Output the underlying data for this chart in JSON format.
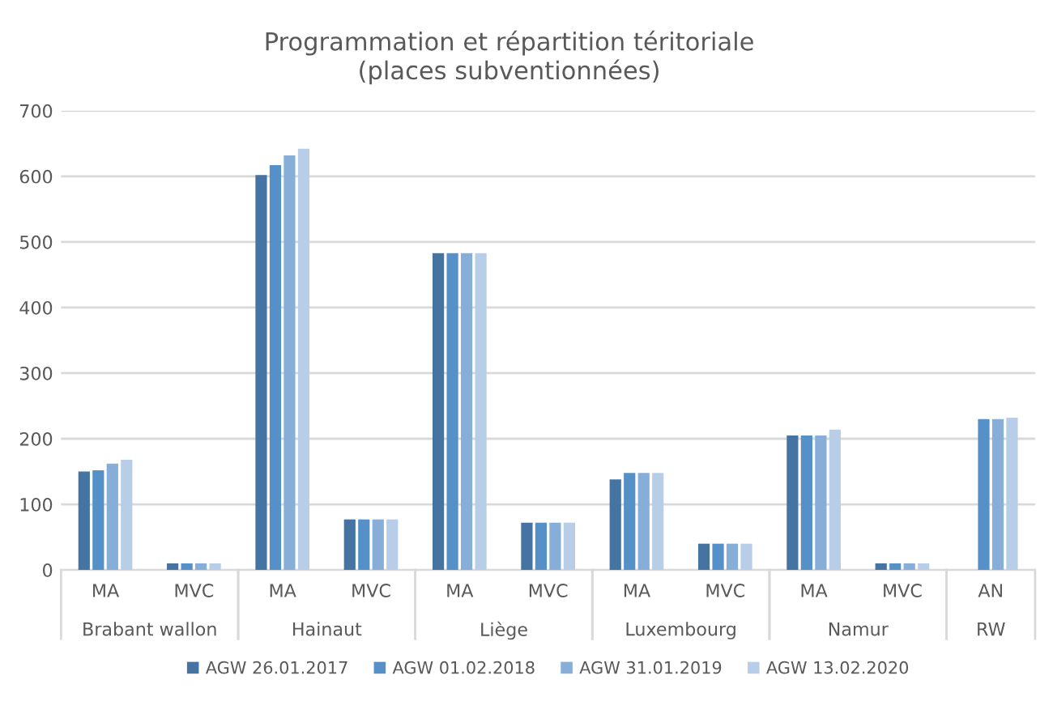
{
  "chart_data": {
    "type": "bar",
    "title": "Programmation et répartition téritoriale\n(places subventionnées)",
    "categories": [
      "MA",
      "MVC",
      "MA",
      "MVC",
      "MA",
      "MVC",
      "MA",
      "MVC",
      "MA",
      "MVC",
      "AN"
    ],
    "annotations": [
      "Brabant wallon",
      "Hainaut",
      "Liège",
      "Luxembourg",
      "Namur",
      "RW"
    ],
    "series": [
      {
        "name": "AGW 26.01.2017",
        "color": "#4674a2",
        "values": [
          150,
          10,
          602,
          77,
          483,
          72,
          138,
          40,
          205,
          10,
          null
        ]
      },
      {
        "name": "AGW 01.02.2018",
        "color": "#5690c8",
        "values": [
          152,
          10,
          617,
          77,
          483,
          72,
          148,
          40,
          205,
          10,
          230
        ]
      },
      {
        "name": "AGW 31.01.2019",
        "color": "#86aed8",
        "values": [
          162,
          10,
          632,
          77,
          483,
          72,
          148,
          40,
          205,
          10,
          230
        ]
      },
      {
        "name": "AGW 13.02.2020",
        "color": "#b8cde7",
        "values": [
          168,
          10,
          642,
          77,
          483,
          72,
          148,
          40,
          214,
          10,
          232
        ]
      }
    ],
    "ylim": [
      0,
      700
    ],
    "yticks": [
      0,
      100,
      200,
      300,
      400,
      500,
      600,
      700
    ],
    "grid": "y",
    "legend": "bottom"
  }
}
